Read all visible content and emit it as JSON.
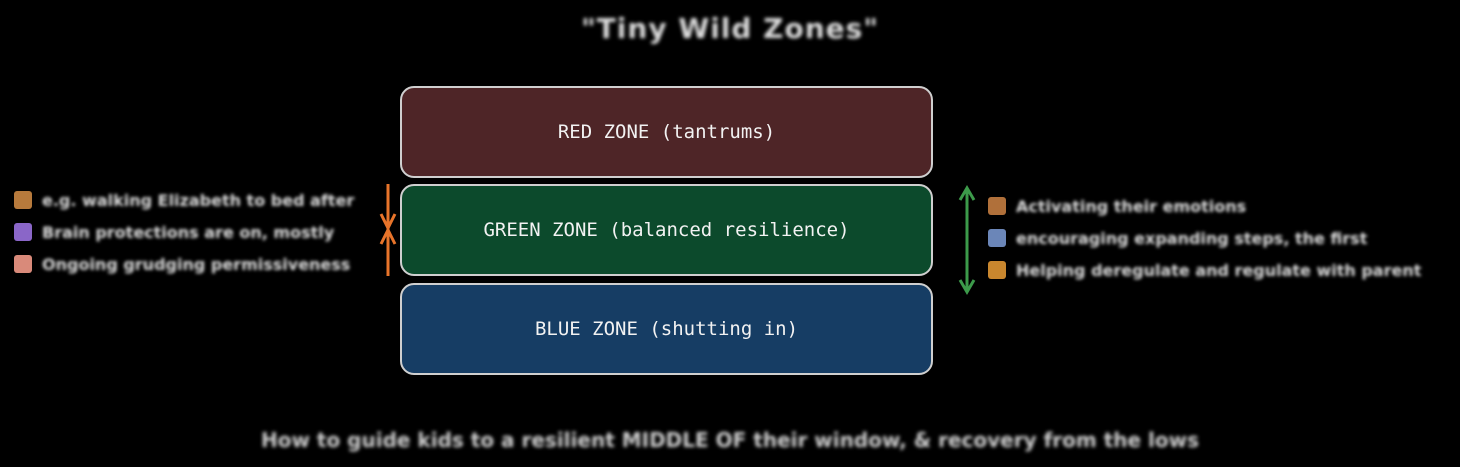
{
  "title": "\"Tiny Wild Zones\"",
  "zones": {
    "red": "RED ZONE (tantrums)",
    "green": "GREEN ZONE (balanced resilience)",
    "blue": "BLUE ZONE (shutting in)"
  },
  "left_items": [
    {
      "icon": "box-icon",
      "color": "#b77a3c",
      "text": "e.g. walking Elizabeth to bed after"
    },
    {
      "icon": "sparkle-icon",
      "color": "#8a66c8",
      "text": "Brain protections are on, mostly"
    },
    {
      "icon": "face-icon",
      "color": "#d98a7a",
      "text": "Ongoing grudging permissiveness"
    }
  ],
  "right_items": [
    {
      "icon": "door-icon",
      "color": "#b0703a",
      "text": "Activating their emotions"
    },
    {
      "icon": "bubble-icon",
      "color": "#6b86b8",
      "text": "encouraging expanding steps, the first"
    },
    {
      "icon": "fist-icon",
      "color": "#c9872e",
      "text": "Helping deregulate and regulate with parent"
    }
  ],
  "footer": "How to guide kids to a resilient MIDDLE OF their window, & recovery from the lows",
  "colors": {
    "red_zone": "#4e2527",
    "green_zone": "#0c4a2c",
    "blue_zone": "#163d64",
    "left_arrow": "#e8742a",
    "right_arrow": "#3c9a4a"
  }
}
